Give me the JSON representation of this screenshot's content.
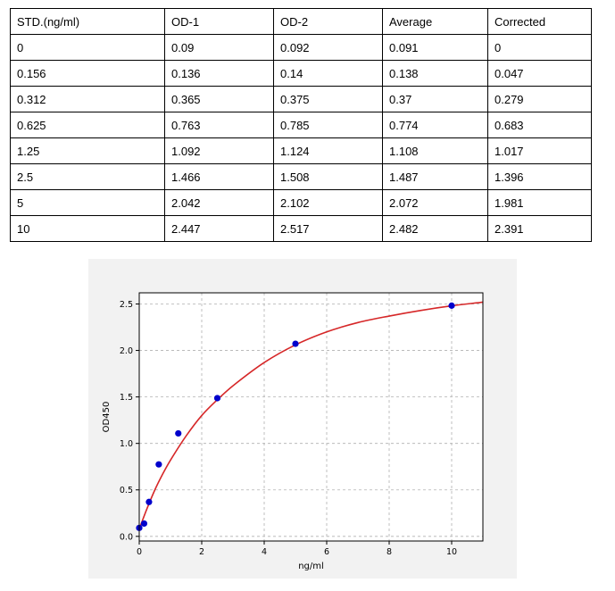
{
  "table": {
    "headers": [
      "STD.(ng/ml)",
      "OD-1",
      "OD-2",
      "Average",
      "Corrected"
    ],
    "rows": [
      [
        "0",
        "0.09",
        "0.092",
        "0.091",
        "0"
      ],
      [
        "0.156",
        "0.136",
        "0.14",
        "0.138",
        "0.047"
      ],
      [
        "0.312",
        "0.365",
        "0.375",
        "0.37",
        "0.279"
      ],
      [
        "0.625",
        "0.763",
        "0.785",
        "0.774",
        "0.683"
      ],
      [
        "1.25",
        "1.092",
        "1.124",
        "1.108",
        "1.017"
      ],
      [
        "2.5",
        "1.466",
        "1.508",
        "1.487",
        "1.396"
      ],
      [
        "5",
        "2.042",
        "2.102",
        "2.072",
        "1.981"
      ],
      [
        "10",
        "2.447",
        "2.517",
        "2.482",
        "2.391"
      ]
    ]
  },
  "chart_data": {
    "type": "scatter",
    "xlabel": "ng/ml",
    "ylabel": "OD450",
    "xlim": [
      0,
      11
    ],
    "ylim": [
      -0.05,
      2.62
    ],
    "xticks": [
      "0",
      "2",
      "4",
      "6",
      "8",
      "10"
    ],
    "yticks": [
      "0.0",
      "0.5",
      "1.0",
      "1.5",
      "2.0",
      "2.5"
    ],
    "grid": true,
    "series": [
      {
        "kind": "points",
        "color": "#0000cc",
        "x": [
          0,
          0.156,
          0.312,
          0.625,
          1.25,
          2.5,
          5,
          10
        ],
        "y": [
          0.091,
          0.138,
          0.37,
          0.774,
          1.108,
          1.487,
          2.072,
          2.482
        ]
      },
      {
        "kind": "fitted-curve",
        "color": "#d62728",
        "x": [
          0,
          0.25,
          0.5,
          0.75,
          1,
          1.5,
          2,
          2.5,
          3,
          4,
          5,
          6,
          7,
          8,
          9,
          10,
          11
        ],
        "y": [
          0.08,
          0.3,
          0.5,
          0.67,
          0.82,
          1.08,
          1.3,
          1.47,
          1.62,
          1.87,
          2.06,
          2.2,
          2.3,
          2.37,
          2.43,
          2.48,
          2.52
        ]
      }
    ]
  }
}
